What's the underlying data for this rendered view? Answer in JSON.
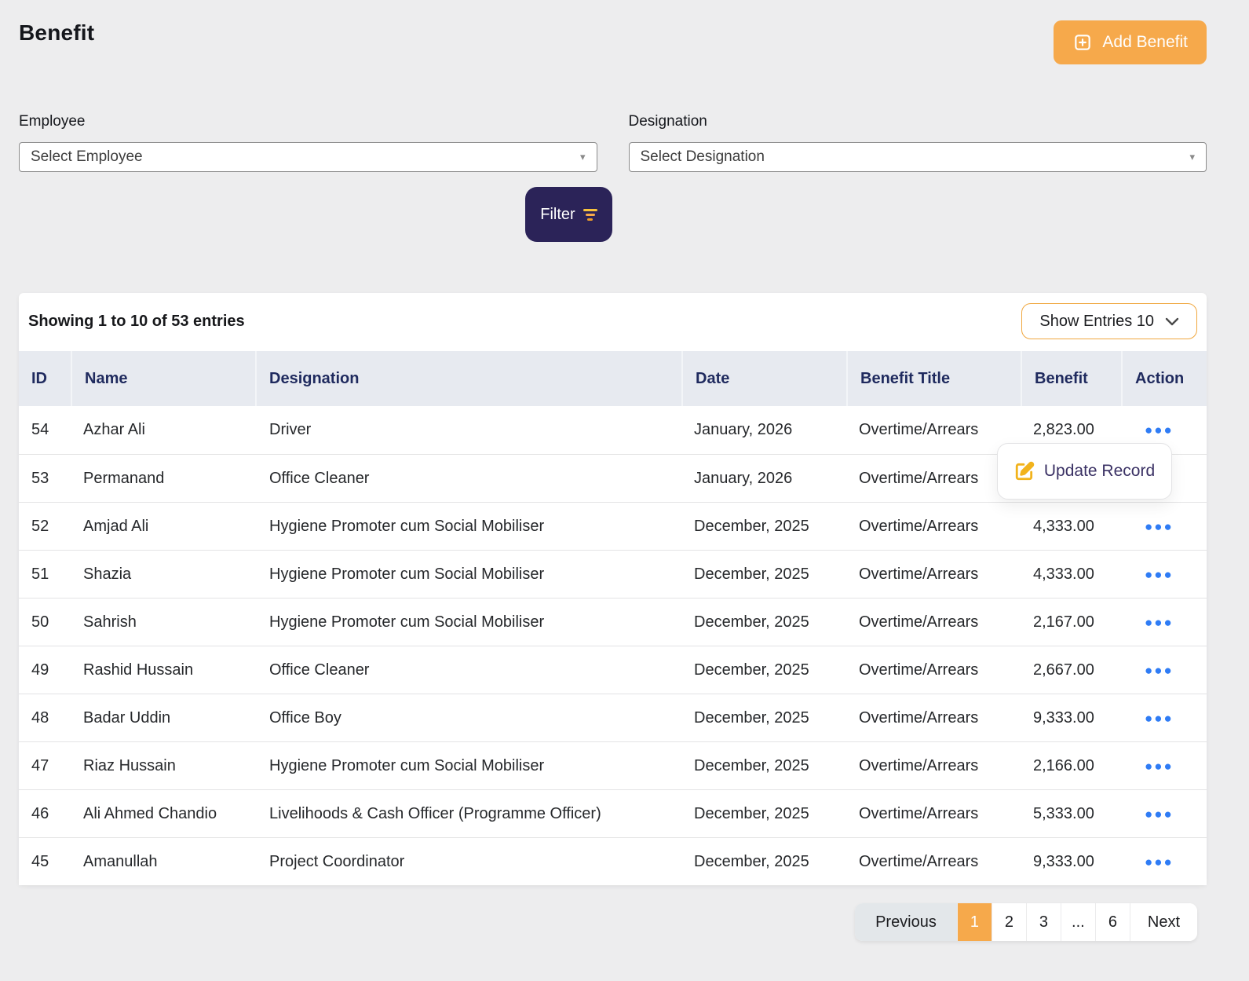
{
  "page": {
    "title": "Benefit"
  },
  "topbar": {
    "add_button_label": "Add Benefit"
  },
  "filters": {
    "employee_label": "Employee",
    "employee_placeholder": "Select Employee",
    "designation_label": "Designation",
    "designation_placeholder": "Select Designation",
    "filter_button_label": "Filter"
  },
  "table": {
    "summary": "Showing 1 to 10 of 53 entries",
    "show_entries_label": "Show Entries 10",
    "columns": [
      "ID",
      "Name",
      "Designation",
      "Date",
      "Benefit Title",
      "Benefit",
      "Action"
    ],
    "rows": [
      {
        "id": "54",
        "name": "Azhar Ali",
        "designation": "Driver",
        "date": "January, 2026",
        "benefit_title": "Overtime/Arrears",
        "benefit": "2,823.00"
      },
      {
        "id": "53",
        "name": "Permanand",
        "designation": "Office Cleaner",
        "date": "January, 2026",
        "benefit_title": "Overtime/Arrears",
        "benefit": ""
      },
      {
        "id": "52",
        "name": "Amjad Ali",
        "designation": "Hygiene Promoter cum Social Mobiliser",
        "date": "December, 2025",
        "benefit_title": "Overtime/Arrears",
        "benefit": "4,333.00"
      },
      {
        "id": "51",
        "name": "Shazia",
        "designation": "Hygiene Promoter cum Social Mobiliser",
        "date": "December, 2025",
        "benefit_title": "Overtime/Arrears",
        "benefit": "4,333.00"
      },
      {
        "id": "50",
        "name": "Sahrish",
        "designation": "Hygiene Promoter cum Social Mobiliser",
        "date": "December, 2025",
        "benefit_title": "Overtime/Arrears",
        "benefit": "2,167.00"
      },
      {
        "id": "49",
        "name": "Rashid Hussain",
        "designation": "Office Cleaner",
        "date": "December, 2025",
        "benefit_title": "Overtime/Arrears",
        "benefit": "2,667.00"
      },
      {
        "id": "48",
        "name": "Badar Uddin",
        "designation": "Office Boy",
        "date": "December, 2025",
        "benefit_title": "Overtime/Arrears",
        "benefit": "9,333.00"
      },
      {
        "id": "47",
        "name": "Riaz Hussain",
        "designation": "Hygiene Promoter cum Social Mobiliser",
        "date": "December, 2025",
        "benefit_title": "Overtime/Arrears",
        "benefit": "2,166.00"
      },
      {
        "id": "46",
        "name": "Ali Ahmed Chandio",
        "designation": "Livelihoods & Cash Officer (Programme Officer)",
        "date": "December, 2025",
        "benefit_title": "Overtime/Arrears",
        "benefit": "5,333.00"
      },
      {
        "id": "45",
        "name": "Amanullah",
        "designation": "Project Coordinator",
        "date": "December, 2025",
        "benefit_title": "Overtime/Arrears",
        "benefit": "9,333.00"
      }
    ]
  },
  "popup": {
    "update_record_label": "Update Record"
  },
  "pagination": {
    "items": [
      "Previous",
      "1",
      "2",
      "3",
      "...",
      "6",
      "Next"
    ],
    "active": "1"
  },
  "colors": {
    "accent_orange": "#F6A94B",
    "navy_button": "#2B2358",
    "header_text": "#1F2A5E",
    "action_dots_blue": "#2F7CF5",
    "edit_icon_gold": "#F2B31C",
    "page_background": "#EDEDEE",
    "table_header_background": "#E7EAF0"
  }
}
